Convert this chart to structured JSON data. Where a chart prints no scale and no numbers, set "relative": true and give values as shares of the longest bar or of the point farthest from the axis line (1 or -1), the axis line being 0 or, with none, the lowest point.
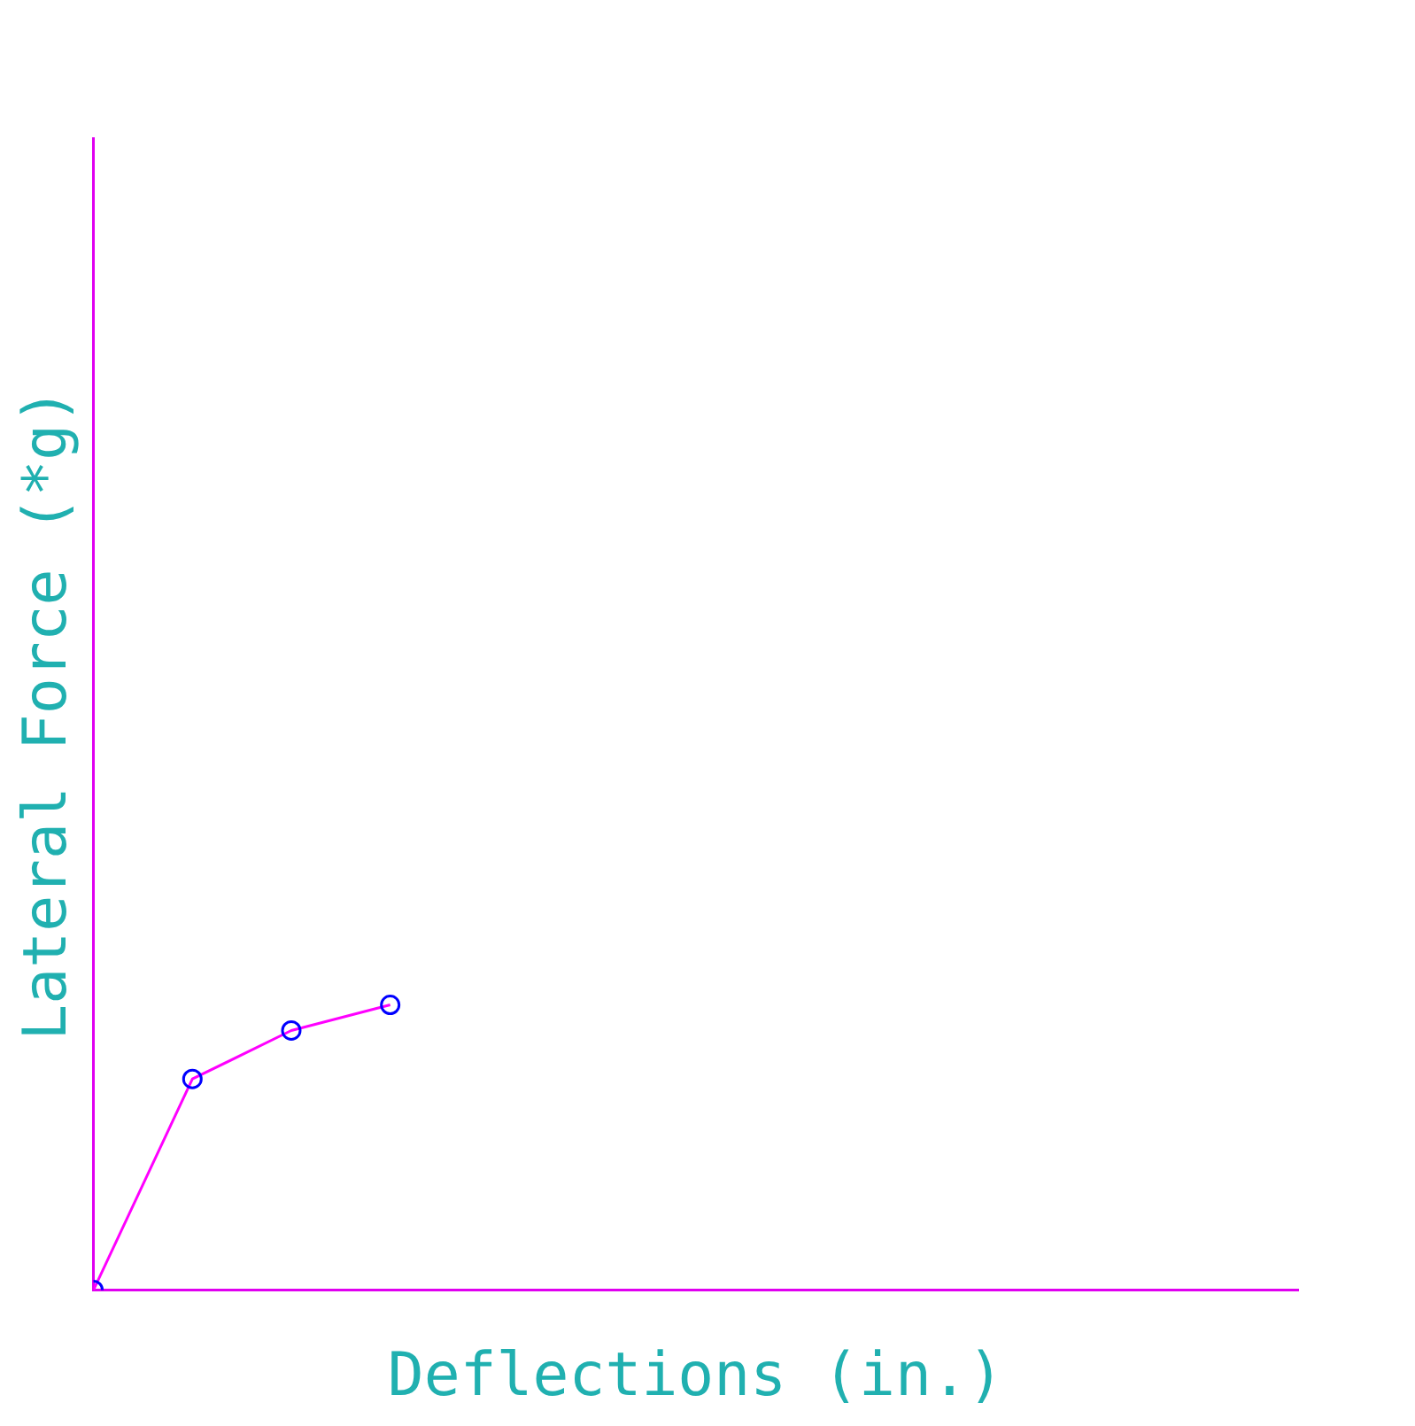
{
  "chart_data": {
    "type": "line",
    "relative": true,
    "xlabel": "Deflections (in.)",
    "ylabel": "Lateral Force (*g)",
    "categories": [
      null,
      null,
      null,
      null
    ],
    "series": [
      {
        "color": "#ff00ff",
        "values": [
          0,
          0.74,
          0.91,
          1
        ]
      }
    ],
    "marker": "circle",
    "line_style": "solid",
    "grid": false,
    "legend": false
  }
}
